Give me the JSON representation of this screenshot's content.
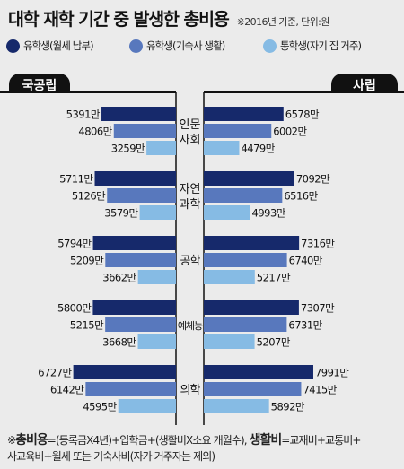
{
  "title": "대학 재학 기간 중 발생한 총비용",
  "note": "※2016년 기준, 단위:원",
  "colors": {
    "dark": "#16296b",
    "mid": "#5878bd",
    "light": "#86bbe4",
    "pill": "#111111",
    "bg": "#ebebeb"
  },
  "legend": [
    {
      "label": "유학생(월세 납부)",
      "color": "#16296b"
    },
    {
      "label": "유학생(기숙사 생활)",
      "color": "#5878bd"
    },
    {
      "label": "통학생(자기 집 거주)",
      "color": "#86bbe4"
    }
  ],
  "chart_data": {
    "type": "bar",
    "orientation": "horizontal-butterfly",
    "unit": "만",
    "left_label": "국공립",
    "right_label": "사립",
    "categories": [
      [
        "인문",
        "사회"
      ],
      [
        "자연",
        "과학"
      ],
      [
        "공학"
      ],
      [
        "예체능"
      ],
      [
        "의학"
      ]
    ],
    "series": [
      {
        "name": "유학생(월세 납부)",
        "color": "#16296b",
        "left": [
          5391,
          5711,
          5794,
          5800,
          6727
        ],
        "right": [
          6578,
          7092,
          7316,
          7307,
          7991
        ]
      },
      {
        "name": "유학생(기숙사 생활)",
        "color": "#5878bd",
        "left": [
          4806,
          5126,
          5209,
          5215,
          6142
        ],
        "right": [
          6002,
          6516,
          6740,
          6731,
          7415
        ]
      },
      {
        "name": "통학생(자기 집 거주)",
        "color": "#86bbe4",
        "left": [
          3259,
          3579,
          3662,
          3668,
          4595
        ],
        "right": [
          4479,
          4993,
          5217,
          5207,
          5892
        ]
      }
    ]
  },
  "footnote": {
    "mark": "※",
    "term1": "총비용",
    "def1": "=(등록금X4년)+입학금+(생활비X소요 개월수),",
    "term2": "생활비",
    "def2": "=교재비+교통비+",
    "line2": "사교육비+월세 또는 기숙사비(자가 거주자는 제외)"
  }
}
